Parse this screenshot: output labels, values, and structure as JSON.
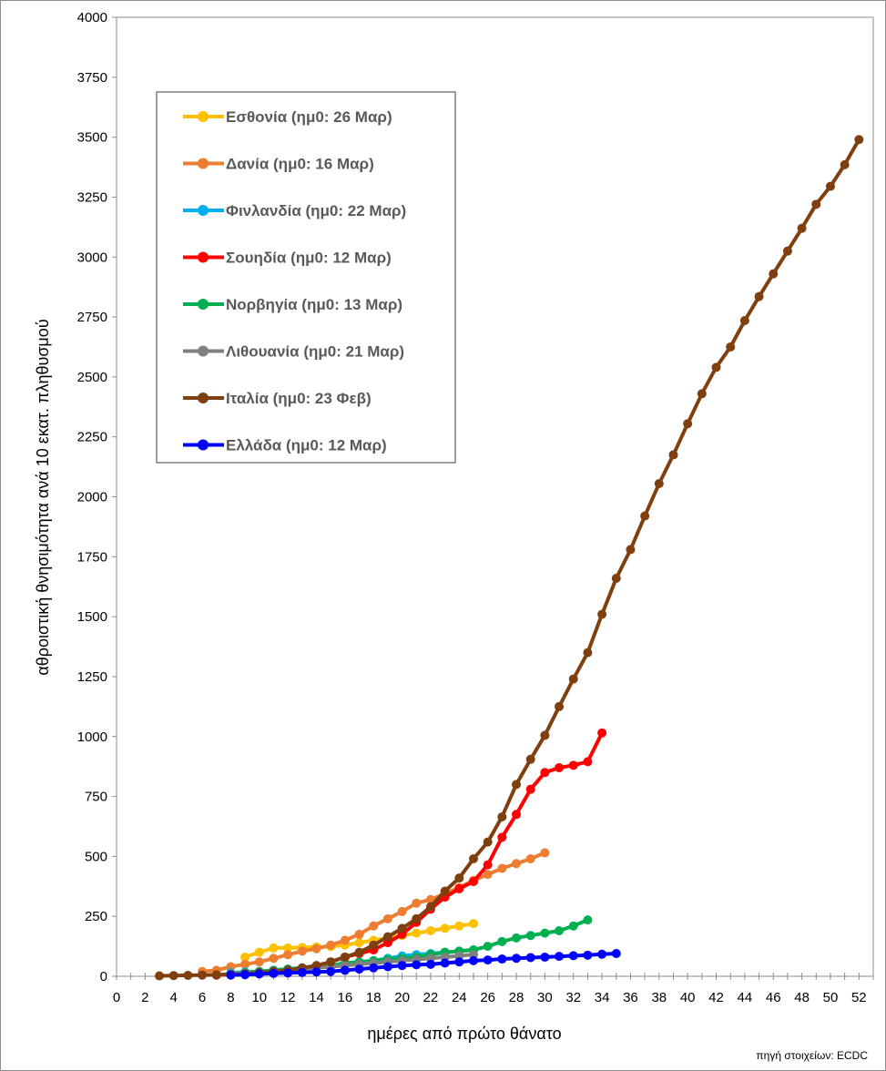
{
  "chart_data": {
    "type": "line",
    "xlabel": "ημέρες από πρώτο θάνατο",
    "ylabel": "αθροιστική θνησιμότητα ανά 10 εκατ. πληθυσμού",
    "source": "πηγή στοιχείων: ECDC",
    "xlim": [
      0,
      53
    ],
    "ylim": [
      0,
      4000
    ],
    "x_ticks": [
      0,
      2,
      4,
      6,
      8,
      10,
      12,
      14,
      16,
      18,
      20,
      22,
      24,
      26,
      28,
      30,
      32,
      34,
      36,
      38,
      40,
      42,
      44,
      46,
      48,
      50,
      52
    ],
    "y_ticks": [
      0,
      250,
      500,
      750,
      1000,
      1250,
      1500,
      1750,
      2000,
      2250,
      2500,
      2750,
      3000,
      3250,
      3500,
      3750,
      4000
    ],
    "legend_position": "top-left",
    "grid": false,
    "series": [
      {
        "name": "Εσθονία (ημ0: 26 Μαρ)",
        "color": "#FFC000",
        "x": [
          9,
          10,
          11,
          12,
          13,
          14,
          15,
          16,
          17,
          18,
          19,
          20,
          21,
          22,
          23,
          24,
          25
        ],
        "y": [
          80,
          100,
          118,
          118,
          120,
          122,
          124,
          130,
          140,
          150,
          160,
          170,
          180,
          190,
          200,
          210,
          220
        ]
      },
      {
        "name": "Δανία (ημ0: 16 Μαρ)",
        "color": "#ED7D31",
        "x": [
          6,
          7,
          8,
          9,
          10,
          11,
          12,
          13,
          14,
          15,
          16,
          17,
          18,
          19,
          20,
          21,
          22,
          23,
          24,
          25,
          26,
          27,
          28,
          29,
          30
        ],
        "y": [
          20,
          25,
          40,
          50,
          60,
          75,
          90,
          105,
          115,
          130,
          150,
          175,
          210,
          240,
          270,
          305,
          320,
          345,
          370,
          400,
          425,
          450,
          470,
          490,
          515
        ]
      },
      {
        "name": "Φινλανδία (ημ0: 22 Μαρ)",
        "color": "#00B0F0",
        "x": [
          8,
          9,
          10,
          11,
          12,
          13,
          14,
          15,
          16,
          17,
          18,
          19,
          20,
          21,
          22,
          23,
          24,
          25
        ],
        "y": [
          15,
          18,
          20,
          25,
          30,
          35,
          40,
          45,
          50,
          55,
          65,
          75,
          85,
          90,
          95,
          100,
          105,
          110
        ]
      },
      {
        "name": "Σουηδία (ημ0: 12 Μαρ)",
        "color": "#FF0000",
        "x": [
          7,
          8,
          9,
          10,
          11,
          12,
          13,
          14,
          15,
          16,
          17,
          18,
          19,
          20,
          21,
          22,
          23,
          24,
          25,
          26,
          27,
          28,
          29,
          30,
          31,
          32,
          33,
          34
        ],
        "y": [
          5,
          8,
          10,
          15,
          20,
          25,
          30,
          40,
          60,
          80,
          95,
          110,
          140,
          175,
          225,
          280,
          330,
          365,
          395,
          465,
          580,
          675,
          780,
          850,
          870,
          880,
          895,
          1015
        ]
      },
      {
        "name": "Νορβηγία (ημ0: 13 Μαρ)",
        "color": "#00B050",
        "x": [
          8,
          9,
          10,
          11,
          12,
          13,
          14,
          15,
          16,
          17,
          18,
          19,
          20,
          21,
          22,
          23,
          24,
          25,
          26,
          27,
          28,
          29,
          30,
          31,
          32,
          33
        ],
        "y": [
          10,
          15,
          20,
          25,
          30,
          35,
          40,
          45,
          55,
          60,
          65,
          70,
          75,
          80,
          90,
          100,
          105,
          110,
          125,
          145,
          160,
          170,
          180,
          190,
          210,
          235
        ]
      },
      {
        "name": "Λιθουανία (ημ0: 21 Μαρ)",
        "color": "#808080",
        "x": [
          8,
          9,
          10,
          11,
          12,
          13,
          14,
          15,
          16,
          17,
          18,
          19,
          20,
          21,
          22,
          23,
          24,
          25
        ],
        "y": [
          10,
          12,
          15,
          20,
          25,
          30,
          35,
          40,
          45,
          50,
          55,
          60,
          65,
          70,
          75,
          80,
          85,
          90
        ]
      },
      {
        "name": "Ιταλία (ημ0: 23 Φεβ)",
        "color": "#7F3F0F",
        "x": [
          3,
          4,
          5,
          6,
          7,
          8,
          9,
          10,
          11,
          12,
          13,
          14,
          15,
          16,
          17,
          18,
          19,
          20,
          21,
          22,
          23,
          24,
          25,
          26,
          27,
          28,
          29,
          30,
          31,
          32,
          33,
          34,
          35,
          36,
          37,
          38,
          39,
          40,
          41,
          42,
          43,
          44,
          45,
          46,
          47,
          48,
          49,
          50,
          51,
          52
        ],
        "y": [
          2,
          3,
          4,
          5,
          6,
          8,
          10,
          15,
          20,
          25,
          35,
          45,
          60,
          80,
          100,
          130,
          165,
          200,
          240,
          290,
          355,
          410,
          490,
          560,
          665,
          800,
          905,
          1005,
          1125,
          1240,
          1350,
          1510,
          1660,
          1780,
          1920,
          2055,
          2175,
          2305,
          2430,
          2540,
          2625,
          2735,
          2835,
          2930,
          3025,
          3120,
          3220,
          3295,
          3385,
          3490
        ]
      },
      {
        "name": "Ελλάδα (ημ0: 12 Μαρ)",
        "color": "#0000FF",
        "x": [
          8,
          9,
          10,
          11,
          12,
          13,
          14,
          15,
          16,
          17,
          18,
          19,
          20,
          21,
          22,
          23,
          24,
          25,
          26,
          27,
          28,
          29,
          30,
          31,
          32,
          33,
          34,
          35
        ],
        "y": [
          5,
          7,
          10,
          12,
          14,
          16,
          18,
          20,
          25,
          30,
          35,
          40,
          45,
          48,
          50,
          55,
          60,
          65,
          68,
          72,
          75,
          78,
          80,
          83,
          86,
          88,
          92,
          95
        ]
      }
    ]
  }
}
